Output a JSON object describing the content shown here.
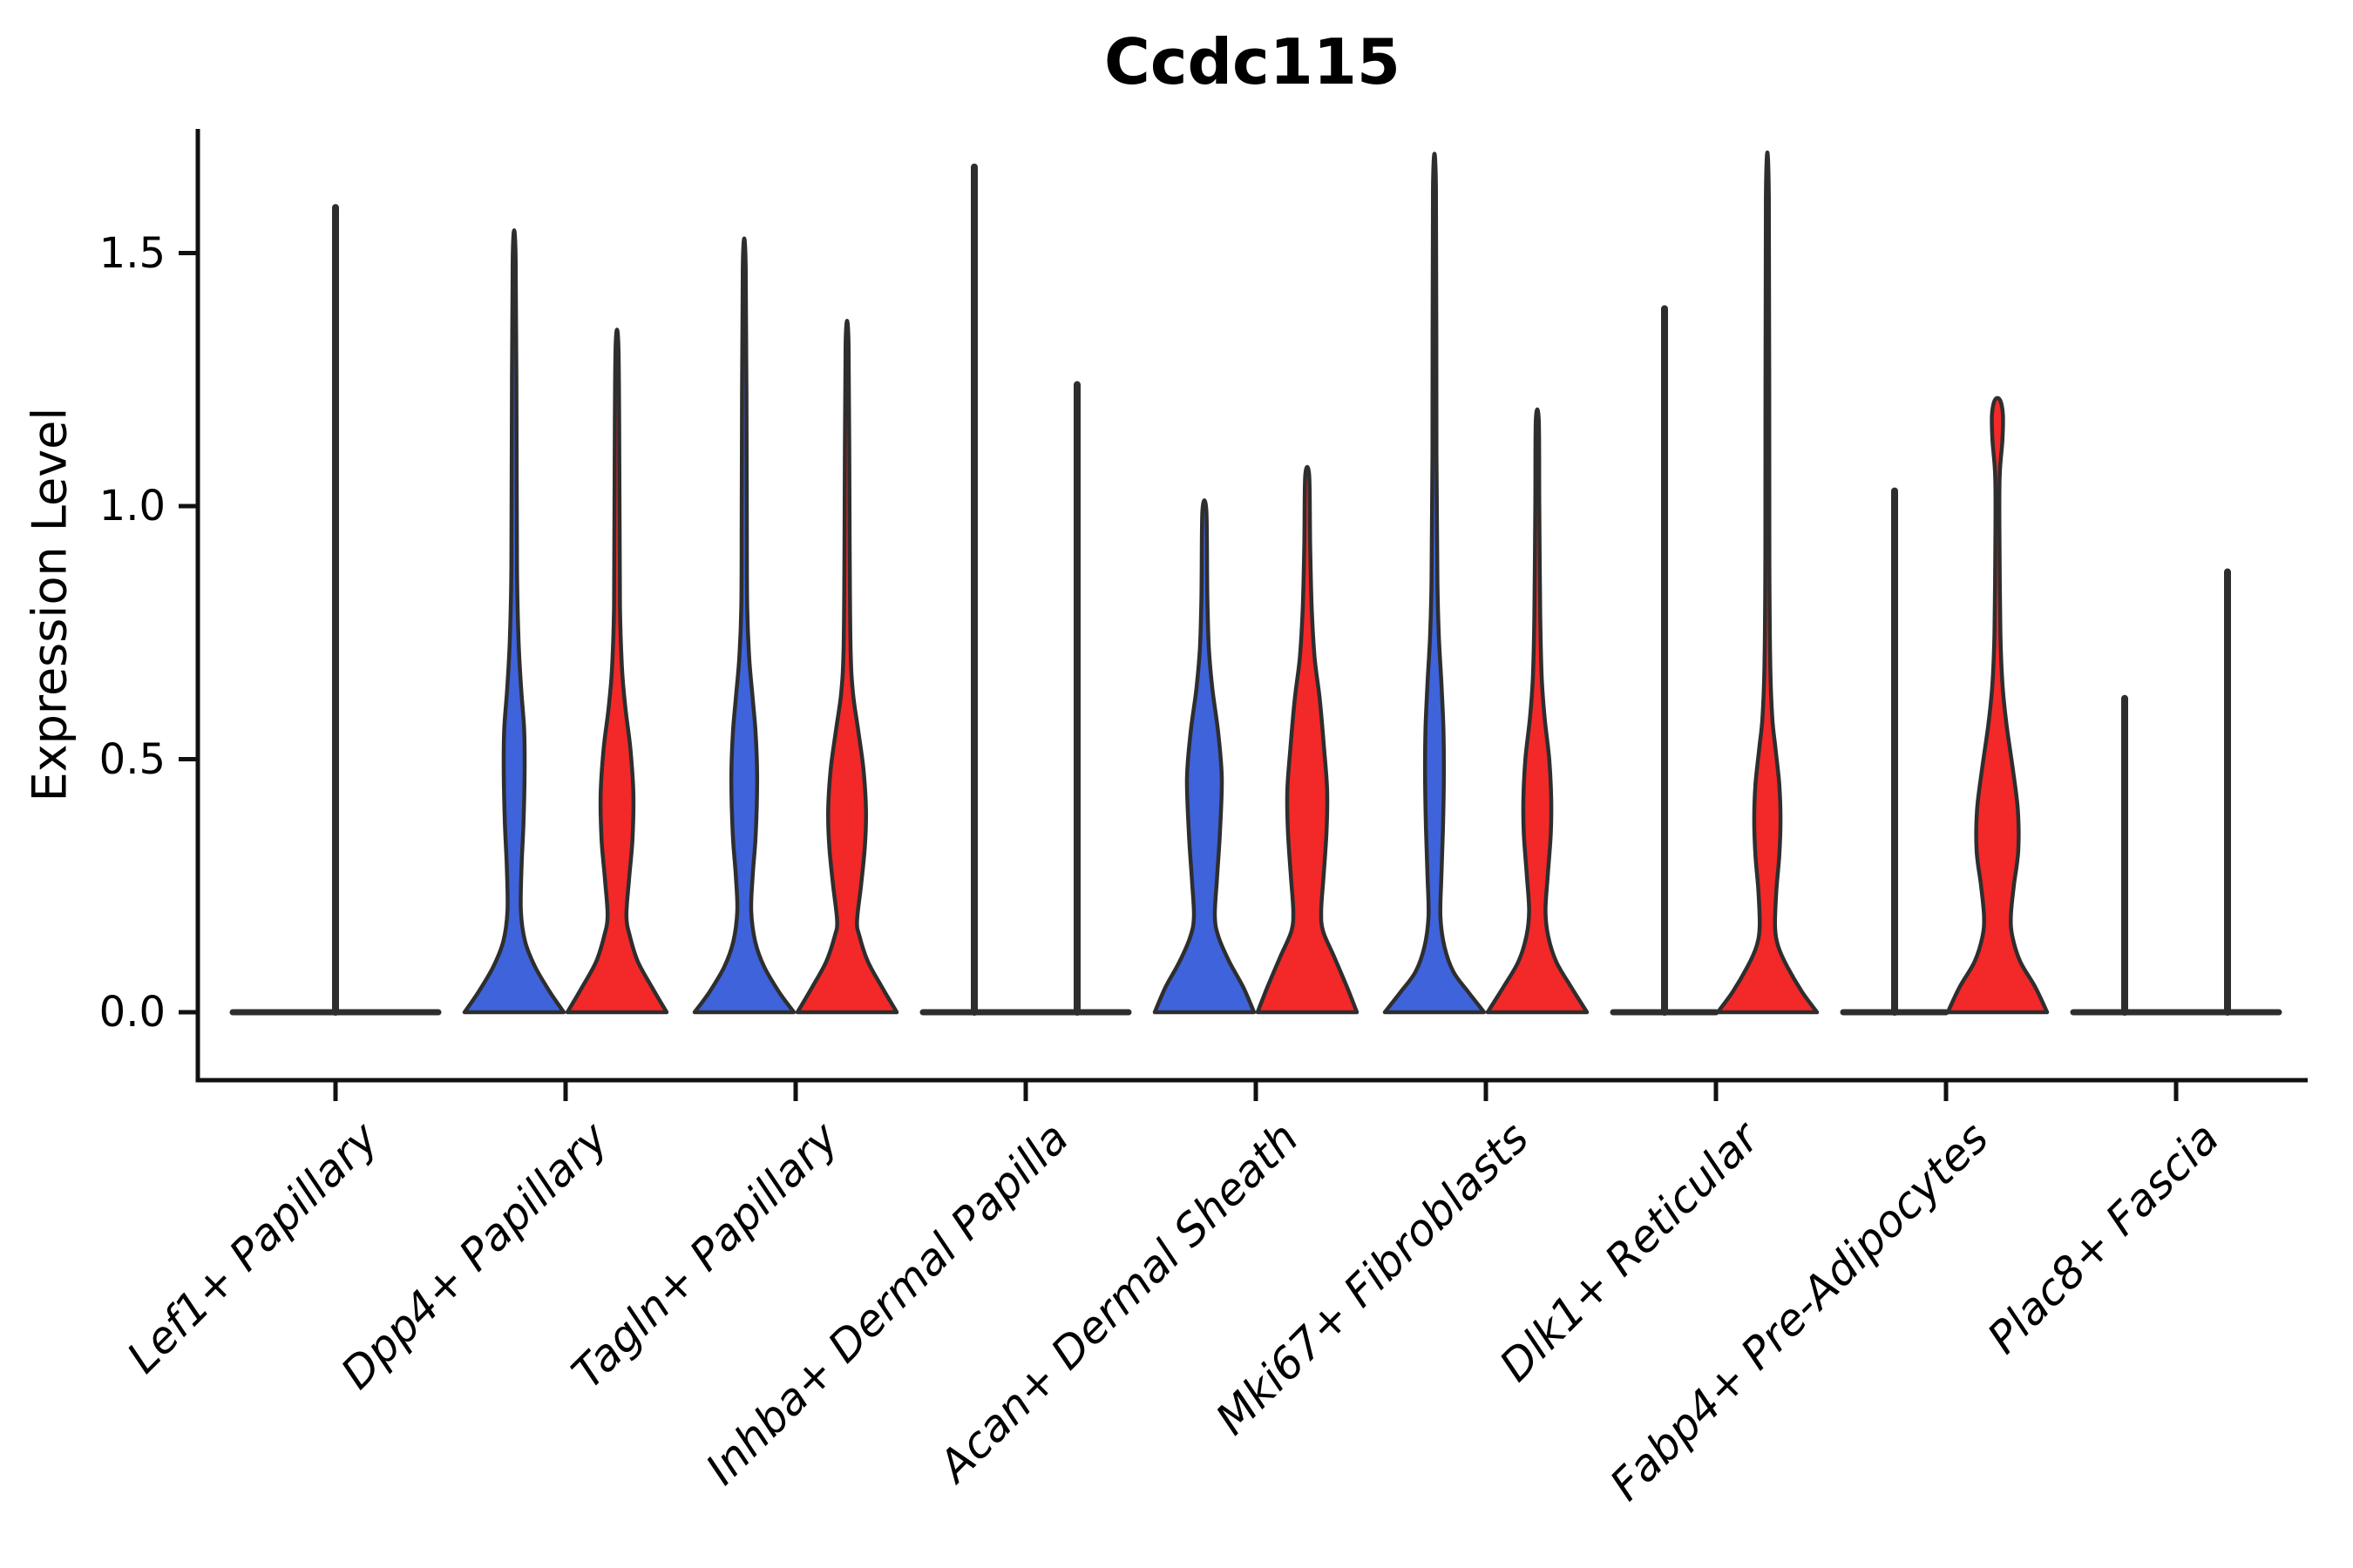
{
  "title": "Ccdc115",
  "y_axis": {
    "label": "Expression Level",
    "ticks": [
      0.0,
      0.5,
      1.0,
      1.5
    ],
    "tick_labels": [
      "0.0",
      "0.5",
      "1.0",
      "1.5"
    ]
  },
  "series": [
    {
      "id": "blue",
      "color": "#3E63DB"
    },
    {
      "id": "red",
      "color": "#F32828"
    }
  ],
  "colors": {
    "outline": "#2E2E2E",
    "axis": "#111111",
    "background": "#ffffff"
  },
  "chart_data": {
    "type": "violin",
    "title": "Ccdc115",
    "xlabel": "",
    "ylabel": "Expression Level",
    "ylim": [
      -0.13,
      1.74
    ],
    "y_ticks": [
      0.0,
      0.5,
      1.0,
      1.5
    ],
    "grid": false,
    "legend": "none",
    "categories": [
      "Lef1+ Papillary",
      "Dpp4+ Papillary",
      "Tagln+ Papillary",
      "Inhba+ Dermal Papilla",
      "Acan+ Dermal Sheath",
      "Mki67+ Fibroblasts",
      "Dlk1+ Reticular",
      "Fabp4+ Pre-Adipocytes",
      "Plac8+ Fascia"
    ],
    "violins": [
      [
        {
          "series": "combined",
          "shape": "spike",
          "offset": 0,
          "span": 2.0,
          "max": 1.59
        }
      ],
      [
        {
          "series": "blue",
          "shape": "body",
          "offset": -1,
          "max": 1.49,
          "profile": [
            [
              0,
              1.0
            ],
            [
              0.04,
              0.72
            ],
            [
              0.09,
              0.42
            ],
            [
              0.14,
              0.22
            ],
            [
              0.2,
              0.135
            ],
            [
              0.29,
              0.15
            ],
            [
              0.38,
              0.19
            ],
            [
              0.48,
              0.21
            ],
            [
              0.56,
              0.2
            ],
            [
              0.64,
              0.14
            ],
            [
              0.73,
              0.09
            ],
            [
              0.85,
              0.06
            ],
            [
              1.05,
              0.05
            ],
            [
              1.49,
              0.03
            ]
          ]
        },
        {
          "series": "red",
          "shape": "body",
          "offset": 1,
          "max": 1.31,
          "profile": [
            [
              0,
              1.0
            ],
            [
              0.05,
              0.7
            ],
            [
              0.1,
              0.42
            ],
            [
              0.15,
              0.26
            ],
            [
              0.19,
              0.19
            ],
            [
              0.26,
              0.24
            ],
            [
              0.34,
              0.31
            ],
            [
              0.43,
              0.33
            ],
            [
              0.52,
              0.27
            ],
            [
              0.6,
              0.17
            ],
            [
              0.68,
              0.1
            ],
            [
              0.8,
              0.06
            ],
            [
              1.0,
              0.05
            ],
            [
              1.31,
              0.03
            ]
          ]
        }
      ],
      [
        {
          "series": "blue",
          "shape": "body",
          "offset": -1,
          "max": 1.47,
          "profile": [
            [
              0,
              1.0
            ],
            [
              0.04,
              0.7
            ],
            [
              0.09,
              0.4
            ],
            [
              0.14,
              0.22
            ],
            [
              0.2,
              0.14
            ],
            [
              0.27,
              0.17
            ],
            [
              0.35,
              0.23
            ],
            [
              0.46,
              0.26
            ],
            [
              0.55,
              0.23
            ],
            [
              0.62,
              0.17
            ],
            [
              0.7,
              0.1
            ],
            [
              0.8,
              0.06
            ],
            [
              1.0,
              0.05
            ],
            [
              1.47,
              0.03
            ]
          ]
        },
        {
          "series": "red",
          "shape": "body",
          "offset": 1,
          "max": 1.32,
          "profile": [
            [
              0,
              1.0
            ],
            [
              0.05,
              0.7
            ],
            [
              0.1,
              0.42
            ],
            [
              0.15,
              0.25
            ],
            [
              0.18,
              0.2
            ],
            [
              0.25,
              0.28
            ],
            [
              0.33,
              0.36
            ],
            [
              0.4,
              0.38
            ],
            [
              0.48,
              0.33
            ],
            [
              0.56,
              0.22
            ],
            [
              0.63,
              0.12
            ],
            [
              0.72,
              0.07
            ],
            [
              0.95,
              0.05
            ],
            [
              1.32,
              0.03
            ]
          ]
        }
      ],
      [
        {
          "series": "blue",
          "shape": "spike",
          "offset": -1,
          "span": 1.0,
          "max": 1.67
        },
        {
          "series": "red",
          "shape": "spike",
          "offset": 1,
          "span": 1.0,
          "max": 1.24
        }
      ],
      [
        {
          "series": "blue",
          "shape": "body",
          "offset": -1,
          "max": 0.99,
          "profile": [
            [
              0,
              1.0
            ],
            [
              0.05,
              0.78
            ],
            [
              0.1,
              0.5
            ],
            [
              0.15,
              0.28
            ],
            [
              0.19,
              0.21
            ],
            [
              0.26,
              0.25
            ],
            [
              0.35,
              0.31
            ],
            [
              0.46,
              0.35
            ],
            [
              0.55,
              0.28
            ],
            [
              0.64,
              0.16
            ],
            [
              0.72,
              0.09
            ],
            [
              0.82,
              0.06
            ],
            [
              0.99,
              0.04
            ]
          ]
        },
        {
          "series": "red",
          "shape": "body",
          "offset": 1,
          "max": 1.06,
          "profile": [
            [
              0,
              1.0
            ],
            [
              0.05,
              0.8
            ],
            [
              0.11,
              0.54
            ],
            [
              0.16,
              0.32
            ],
            [
              0.2,
              0.28
            ],
            [
              0.27,
              0.33
            ],
            [
              0.36,
              0.39
            ],
            [
              0.44,
              0.4
            ],
            [
              0.52,
              0.34
            ],
            [
              0.62,
              0.25
            ],
            [
              0.7,
              0.15
            ],
            [
              0.8,
              0.09
            ],
            [
              0.92,
              0.06
            ],
            [
              1.06,
              0.04
            ]
          ]
        }
      ],
      [
        {
          "series": "blue",
          "shape": "body",
          "offset": -1,
          "max": 1.63,
          "profile": [
            [
              0,
              1.0
            ],
            [
              0.04,
              0.68
            ],
            [
              0.08,
              0.38
            ],
            [
              0.13,
              0.2
            ],
            [
              0.19,
              0.12
            ],
            [
              0.27,
              0.14
            ],
            [
              0.36,
              0.17
            ],
            [
              0.47,
              0.19
            ],
            [
              0.56,
              0.18
            ],
            [
              0.65,
              0.14
            ],
            [
              0.74,
              0.09
            ],
            [
              0.85,
              0.06
            ],
            [
              1.1,
              0.04
            ],
            [
              1.63,
              0.03
            ]
          ]
        },
        {
          "series": "red",
          "shape": "body",
          "offset": 1,
          "max": 1.17,
          "profile": [
            [
              0,
              1.0
            ],
            [
              0.05,
              0.68
            ],
            [
              0.1,
              0.38
            ],
            [
              0.15,
              0.22
            ],
            [
              0.2,
              0.165
            ],
            [
              0.27,
              0.21
            ],
            [
              0.35,
              0.27
            ],
            [
              0.42,
              0.28
            ],
            [
              0.5,
              0.24
            ],
            [
              0.58,
              0.15
            ],
            [
              0.66,
              0.09
            ],
            [
              0.78,
              0.06
            ],
            [
              1.0,
              0.04
            ],
            [
              1.17,
              0.03
            ]
          ]
        }
      ],
      [
        {
          "series": "blue",
          "shape": "spike",
          "offset": -1,
          "span": 1.0,
          "max": 1.39
        },
        {
          "series": "red",
          "shape": "body",
          "offset": 1,
          "max": 1.61,
          "profile": [
            [
              0,
              1.0
            ],
            [
              0.04,
              0.7
            ],
            [
              0.09,
              0.4
            ],
            [
              0.13,
              0.22
            ],
            [
              0.17,
              0.155
            ],
            [
              0.24,
              0.18
            ],
            [
              0.31,
              0.24
            ],
            [
              0.38,
              0.265
            ],
            [
              0.45,
              0.24
            ],
            [
              0.52,
              0.165
            ],
            [
              0.58,
              0.1
            ],
            [
              0.68,
              0.06
            ],
            [
              0.9,
              0.04
            ],
            [
              1.61,
              0.03
            ]
          ]
        }
      ],
      [
        {
          "series": "blue",
          "shape": "spike",
          "offset": -1,
          "span": 1.0,
          "max": 1.03
        },
        {
          "series": "red",
          "shape": "body",
          "offset": 1,
          "max": 1.21,
          "profile": [
            [
              0,
              1.0
            ],
            [
              0.05,
              0.76
            ],
            [
              0.1,
              0.46
            ],
            [
              0.15,
              0.3
            ],
            [
              0.19,
              0.27
            ],
            [
              0.25,
              0.33
            ],
            [
              0.32,
              0.42
            ],
            [
              0.4,
              0.41
            ],
            [
              0.48,
              0.31
            ],
            [
              0.57,
              0.18
            ],
            [
              0.65,
              0.1
            ],
            [
              0.75,
              0.06
            ],
            [
              0.95,
              0.04
            ],
            [
              1.06,
              0.045
            ],
            [
              1.13,
              0.1
            ],
            [
              1.18,
              0.11
            ],
            [
              1.21,
              0.05
            ]
          ]
        }
      ],
      [
        {
          "series": "blue",
          "shape": "spike",
          "offset": -1,
          "span": 1.0,
          "max": 0.62
        },
        {
          "series": "red",
          "shape": "spike",
          "offset": 1,
          "span": 1.0,
          "max": 0.87
        }
      ]
    ]
  }
}
